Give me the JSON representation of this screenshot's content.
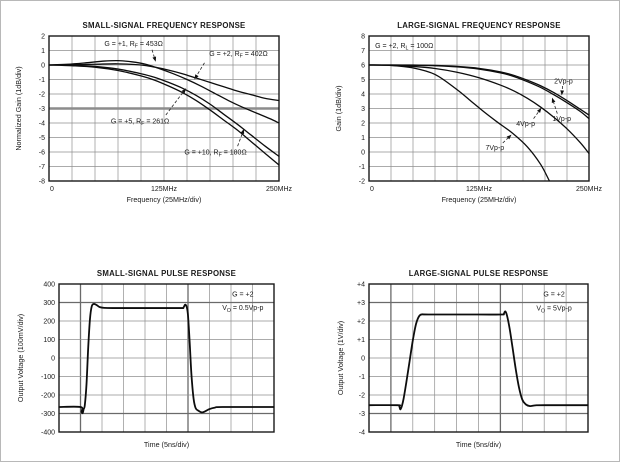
{
  "page": {
    "background": "#ffffff",
    "frame_color": "#b8b8b8",
    "curve_color": "#0d0d0d",
    "grid_color": "#8f8f8f"
  },
  "chart_data": [
    {
      "id": "small-signal-frequency-response",
      "type": "line",
      "title": "SMALL-SIGNAL FREQUENCY RESPONSE",
      "xlabel": "Frequency (25MHz/div)",
      "ylabel": "Normalized Gain (1dB/div)",
      "xlim": [
        0,
        250
      ],
      "ylim": [
        -8,
        2
      ],
      "x_divs": 10,
      "y_divs": 10,
      "grid": true,
      "y_ticks": [
        "2",
        "1",
        "0",
        "-1",
        "-2",
        "-3",
        "-4",
        "-5",
        "-6",
        "-7",
        "-8"
      ],
      "x_ticks": [
        {
          "v": 0,
          "label": "0"
        },
        {
          "v": 125,
          "label": "125MHz"
        },
        {
          "v": 250,
          "label": "250MHz"
        }
      ],
      "ref_h": [
        5
      ],
      "emph_v": [],
      "emph_h": [],
      "stroke_width": 1.3,
      "series": [
        {
          "name": "G=+1 RF=453",
          "points": [
            [
              0,
              0
            ],
            [
              20,
              0.05
            ],
            [
              40,
              0.15
            ],
            [
              60,
              0.27
            ],
            [
              75,
              0.3
            ],
            [
              90,
              0.22
            ],
            [
              105,
              0.05
            ],
            [
              120,
              -0.25
            ],
            [
              135,
              -0.6
            ],
            [
              150,
              -1.0
            ],
            [
              165,
              -1.45
            ],
            [
              180,
              -1.95
            ],
            [
              195,
              -2.45
            ],
            [
              210,
              -2.9
            ],
            [
              225,
              -3.3
            ],
            [
              240,
              -3.7
            ],
            [
              250,
              -4.0
            ]
          ]
        },
        {
          "name": "G=+2 RF=402",
          "points": [
            [
              0,
              0
            ],
            [
              25,
              0.02
            ],
            [
              50,
              0.05
            ],
            [
              75,
              0.08
            ],
            [
              100,
              0.0
            ],
            [
              115,
              -0.15
            ],
            [
              130,
              -0.35
            ],
            [
              145,
              -0.6
            ],
            [
              160,
              -0.9
            ],
            [
              175,
              -1.2
            ],
            [
              190,
              -1.5
            ],
            [
              205,
              -1.8
            ],
            [
              220,
              -2.05
            ],
            [
              235,
              -2.3
            ],
            [
              250,
              -2.45
            ]
          ]
        },
        {
          "name": "G=+5 RF=261",
          "points": [
            [
              0,
              0
            ],
            [
              25,
              -0.02
            ],
            [
              50,
              -0.1
            ],
            [
              75,
              -0.28
            ],
            [
              100,
              -0.6
            ],
            [
              115,
              -0.85
            ],
            [
              130,
              -1.2
            ],
            [
              145,
              -1.6
            ],
            [
              160,
              -2.1
            ],
            [
              175,
              -2.7
            ],
            [
              190,
              -3.4
            ],
            [
              205,
              -4.1
            ],
            [
              220,
              -4.85
            ],
            [
              235,
              -5.6
            ],
            [
              250,
              -6.3
            ]
          ]
        },
        {
          "name": "G=+10 RF=180",
          "points": [
            [
              0,
              0
            ],
            [
              25,
              -0.05
            ],
            [
              50,
              -0.15
            ],
            [
              75,
              -0.38
            ],
            [
              100,
              -0.75
            ],
            [
              115,
              -1.05
            ],
            [
              130,
              -1.45
            ],
            [
              145,
              -1.9
            ],
            [
              160,
              -2.45
            ],
            [
              175,
              -3.1
            ],
            [
              190,
              -3.8
            ],
            [
              205,
              -4.5
            ],
            [
              220,
              -5.3
            ],
            [
              235,
              -6.1
            ],
            [
              250,
              -6.9
            ]
          ]
        }
      ],
      "annotations": [
        {
          "text": "G = +1, R~F~ = 453Ω",
          "x": 92,
          "y": 1.5,
          "anchor": "middle",
          "arrow": {
            "x1": 112,
            "y1": 1.05,
            "x2": 116,
            "y2": 0.22
          }
        },
        {
          "text": "G = +2, R~F~ = 402Ω",
          "x": 206,
          "y": 0.8,
          "anchor": "middle",
          "arrow": {
            "x1": 169,
            "y1": 0.15,
            "x2": 158,
            "y2": -1.0
          }
        },
        {
          "text": "G = +5, R~F~ = 261Ω",
          "x": 99,
          "y": -3.85,
          "anchor": "middle",
          "arrow": {
            "x1": 127,
            "y1": -3.45,
            "x2": 149,
            "y2": -1.6
          }
        },
        {
          "text": "G = +10, R~F~ = 180Ω",
          "x": 181,
          "y": -6.0,
          "anchor": "middle",
          "arrow": {
            "x1": 205,
            "y1": -5.6,
            "x2": 212,
            "y2": -4.4
          }
        }
      ]
    },
    {
      "id": "large-signal-frequency-response",
      "type": "line",
      "title": "LARGE-SIGNAL FREQUENCY RESPONSE",
      "xlabel": "Frequency (25MHz/div)",
      "ylabel": "Gain (1dB/div)",
      "xlim": [
        0,
        250
      ],
      "ylim": [
        -2,
        8
      ],
      "x_divs": 10,
      "y_divs": 10,
      "grid": true,
      "y_ticks": [
        "8",
        "7",
        "6",
        "5",
        "4",
        "3",
        "2",
        "1",
        "0",
        "-1",
        "-2"
      ],
      "x_ticks": [
        {
          "v": 0,
          "label": "0"
        },
        {
          "v": 125,
          "label": "125MHz"
        },
        {
          "v": 250,
          "label": "250MHz"
        }
      ],
      "ref_h": [],
      "emph_v": [],
      "emph_h": [],
      "stroke_width": 1.3,
      "series": [
        {
          "name": "2Vp-p",
          "points": [
            [
              0,
              6
            ],
            [
              25,
              6
            ],
            [
              50,
              6
            ],
            [
              75,
              5.97
            ],
            [
              100,
              5.9
            ],
            [
              125,
              5.77
            ],
            [
              150,
              5.52
            ],
            [
              165,
              5.28
            ],
            [
              180,
              4.95
            ],
            [
              195,
              4.57
            ],
            [
              210,
              4.1
            ],
            [
              225,
              3.55
            ],
            [
              240,
              2.95
            ],
            [
              250,
              2.55
            ]
          ]
        },
        {
          "name": "1Vp-p",
          "points": [
            [
              0,
              6
            ],
            [
              25,
              6
            ],
            [
              50,
              5.98
            ],
            [
              75,
              5.95
            ],
            [
              100,
              5.87
            ],
            [
              125,
              5.72
            ],
            [
              150,
              5.45
            ],
            [
              165,
              5.2
            ],
            [
              180,
              4.85
            ],
            [
              195,
              4.45
            ],
            [
              210,
              3.95
            ],
            [
              225,
              3.4
            ],
            [
              240,
              2.8
            ],
            [
              250,
              2.3
            ]
          ]
        },
        {
          "name": "4Vp-p",
          "points": [
            [
              0,
              6
            ],
            [
              25,
              5.98
            ],
            [
              50,
              5.9
            ],
            [
              75,
              5.76
            ],
            [
              100,
              5.5
            ],
            [
              125,
              5.12
            ],
            [
              150,
              4.6
            ],
            [
              165,
              4.2
            ],
            [
              180,
              3.7
            ],
            [
              195,
              3.1
            ],
            [
              210,
              2.4
            ],
            [
              225,
              1.6
            ],
            [
              240,
              0.65
            ],
            [
              250,
              -0.1
            ]
          ]
        },
        {
          "name": "7Vp-p",
          "points": [
            [
              0,
              6
            ],
            [
              25,
              5.97
            ],
            [
              50,
              5.8
            ],
            [
              75,
              5.35
            ],
            [
              100,
              4.3
            ],
            [
              116,
              3.5
            ],
            [
              130,
              2.8
            ],
            [
              145,
              2.1
            ],
            [
              163,
              1.3
            ],
            [
              180,
              0.35
            ],
            [
              195,
              -0.85
            ],
            [
              205,
              -2.0
            ]
          ]
        }
      ],
      "annotations": [
        {
          "text": "G = +2, R~L~ = 100Ω",
          "x": 7,
          "y": 7.35,
          "anchor": "start"
        },
        {
          "text": "2Vp-p",
          "x": 221,
          "y": 4.9,
          "anchor": "middle",
          "arrow": {
            "x1": 220,
            "y1": 4.55,
            "x2": 219,
            "y2": 3.9
          }
        },
        {
          "text": "1Vp-p",
          "x": 219,
          "y": 2.3,
          "anchor": "middle",
          "arrow": {
            "x1": 214,
            "y1": 2.65,
            "x2": 208,
            "y2": 3.75
          }
        },
        {
          "text": "4Vp-p",
          "x": 178,
          "y": 1.95,
          "anchor": "middle",
          "arrow": {
            "x1": 187,
            "y1": 2.3,
            "x2": 196,
            "y2": 3.05
          }
        },
        {
          "text": "7Vp-p",
          "x": 143,
          "y": 0.3,
          "anchor": "middle",
          "arrow": {
            "x1": 152,
            "y1": 0.62,
            "x2": 162,
            "y2": 1.2
          }
        }
      ]
    },
    {
      "id": "small-signal-pulse-response",
      "type": "line",
      "title": "SMALL-SIGNAL PULSE RESPONSE",
      "xlabel": "Time (5ns/div)",
      "ylabel": "Output Voltage (100mV/div)",
      "xlim": [
        0,
        10
      ],
      "ylim": [
        -400,
        400
      ],
      "x_divs": 10,
      "y_divs": 8,
      "grid": true,
      "y_ticks": [
        "400",
        "300",
        "200",
        "100",
        "0",
        "-100",
        "-200",
        "-300",
        "-400"
      ],
      "x_ticks": [],
      "ref_h": [],
      "emph_v": [
        1,
        6
      ],
      "emph_h": [
        1,
        7
      ],
      "stroke_width": 1.8,
      "series": [
        {
          "name": "pulse-0.5Vpp",
          "points": [
            [
              0,
              -265
            ],
            [
              1.0,
              -265
            ],
            [
              1.05,
              -290
            ],
            [
              1.1,
              -298
            ],
            [
              1.15,
              -275
            ],
            [
              1.2,
              -255
            ],
            [
              1.28,
              -140
            ],
            [
              1.36,
              60
            ],
            [
              1.44,
              210
            ],
            [
              1.52,
              278
            ],
            [
              1.62,
              292
            ],
            [
              1.75,
              286
            ],
            [
              1.9,
              275
            ],
            [
              2.1,
              271
            ],
            [
              2.5,
              270
            ],
            [
              4.0,
              270
            ],
            [
              5.6,
              270
            ],
            [
              5.78,
              272
            ],
            [
              5.86,
              288
            ],
            [
              5.94,
              276
            ],
            [
              6.0,
              230
            ],
            [
              6.08,
              80
            ],
            [
              6.16,
              -90
            ],
            [
              6.26,
              -220
            ],
            [
              6.36,
              -272
            ],
            [
              6.5,
              -286
            ],
            [
              6.65,
              -294
            ],
            [
              6.8,
              -288
            ],
            [
              7.0,
              -276
            ],
            [
              7.25,
              -268
            ],
            [
              7.6,
              -265
            ],
            [
              10,
              -265
            ]
          ]
        }
      ],
      "annotations": [
        {
          "text": "G = +2",
          "x": 8.55,
          "y": 345,
          "anchor": "middle"
        },
        {
          "text": "V~O~ = 0.5Vp-p",
          "x": 8.55,
          "y": 272,
          "anchor": "middle"
        }
      ]
    },
    {
      "id": "large-signal-pulse-response",
      "type": "line",
      "title": "LARGE-SIGNAL PULSE RESPONSE",
      "xlabel": "Time (5ns/div)",
      "ylabel": "Output Voltage (1V/div)",
      "xlim": [
        0,
        10
      ],
      "ylim": [
        -4,
        4
      ],
      "x_divs": 10,
      "y_divs": 8,
      "grid": true,
      "y_ticks": [
        "+4",
        "+3",
        "+2",
        "+1",
        "0",
        "-1",
        "-2",
        "-3",
        "-4"
      ],
      "x_ticks": [],
      "ref_h": [],
      "emph_v": [
        1,
        6
      ],
      "emph_h": [
        1,
        7
      ],
      "stroke_width": 1.8,
      "series": [
        {
          "name": "pulse-5Vpp",
          "points": [
            [
              0,
              -2.55
            ],
            [
              1.3,
              -2.55
            ],
            [
              1.38,
              -2.6
            ],
            [
              1.43,
              -2.78
            ],
            [
              1.5,
              -2.6
            ],
            [
              1.58,
              -2.2
            ],
            [
              1.7,
              -1.35
            ],
            [
              1.85,
              -0.2
            ],
            [
              2.0,
              0.95
            ],
            [
              2.15,
              1.85
            ],
            [
              2.3,
              2.28
            ],
            [
              2.45,
              2.36
            ],
            [
              2.7,
              2.35
            ],
            [
              5.0,
              2.35
            ],
            [
              6.05,
              2.35
            ],
            [
              6.15,
              2.38
            ],
            [
              6.22,
              2.52
            ],
            [
              6.3,
              2.3
            ],
            [
              6.42,
              1.6
            ],
            [
              6.55,
              0.6
            ],
            [
              6.7,
              -0.6
            ],
            [
              6.85,
              -1.6
            ],
            [
              7.0,
              -2.25
            ],
            [
              7.15,
              -2.5
            ],
            [
              7.35,
              -2.6
            ],
            [
              7.6,
              -2.56
            ],
            [
              8.0,
              -2.55
            ],
            [
              10,
              -2.55
            ]
          ]
        }
      ],
      "annotations": [
        {
          "text": "G = +2",
          "x": 8.45,
          "y": 3.45,
          "anchor": "middle"
        },
        {
          "text": "V~O~ = 5Vp-p",
          "x": 8.45,
          "y": 2.7,
          "anchor": "middle"
        }
      ]
    }
  ]
}
